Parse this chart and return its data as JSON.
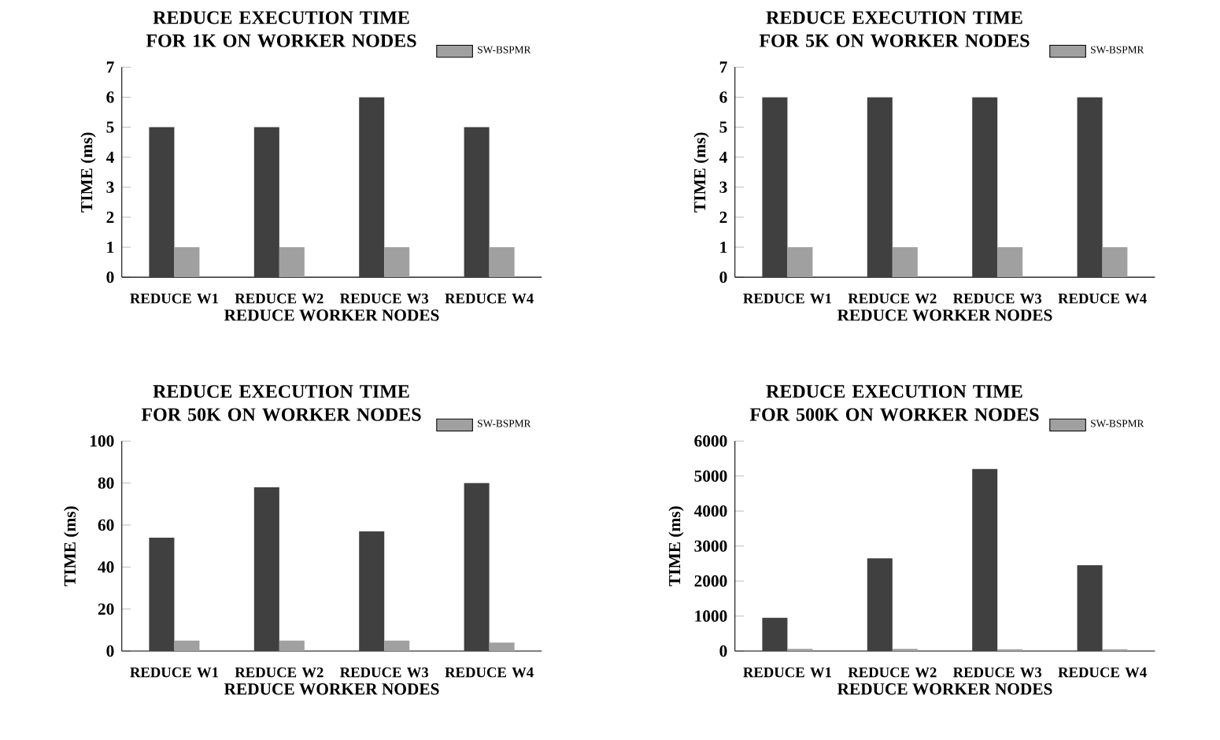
{
  "chart_data": [
    {
      "type": "bar",
      "title": "REDUCE EXECUTION TIME FOR 1K ON WORKER NODES",
      "xlabel": "REDUCE WORKER NODES",
      "ylabel": "TIME (ms)",
      "categories": [
        "REDUCE W1",
        "REDUCE W2",
        "REDUCE W3",
        "REDUCE W4"
      ],
      "ylim": [
        0,
        7
      ],
      "yticks": [
        0,
        1,
        2,
        3,
        4,
        5,
        6,
        7
      ],
      "legend": "top right",
      "series": [
        {
          "color": "#404040",
          "values": [
            5,
            5,
            6,
            5
          ]
        },
        {
          "name": "SW-BSPMR",
          "color": "#a0a0a0",
          "values": [
            1,
            1,
            1,
            1
          ]
        }
      ]
    },
    {
      "type": "bar",
      "title": "REDUCE EXECUTION TIME FOR 5K ON WORKER NODES",
      "xlabel": "REDUCE WORKER NODES",
      "ylabel": "TIME (ms)",
      "categories": [
        "REDUCE W1",
        "REDUCE W2",
        "REDUCE W3",
        "REDUCE W4"
      ],
      "ylim": [
        0,
        7
      ],
      "yticks": [
        0,
        1,
        2,
        3,
        4,
        5,
        6,
        7
      ],
      "legend": "top right",
      "series": [
        {
          "color": "#404040",
          "values": [
            6,
            6,
            6,
            6
          ]
        },
        {
          "name": "SW-BSPMR",
          "color": "#a0a0a0",
          "values": [
            1,
            1,
            1,
            1
          ]
        }
      ]
    },
    {
      "type": "bar",
      "title": "REDUCE EXECUTION TIME FOR 50K ON WORKER NODES",
      "xlabel": "REDUCE WORKER NODES",
      "ylabel": "TIME (ms)",
      "categories": [
        "REDUCE W1",
        "REDUCE W2",
        "REDUCE W3",
        "REDUCE W4"
      ],
      "ylim": [
        0,
        100
      ],
      "yticks": [
        0,
        20,
        40,
        60,
        80,
        100
      ],
      "legend": "top right",
      "series": [
        {
          "color": "#404040",
          "values": [
            54,
            78,
            57,
            80
          ]
        },
        {
          "name": "SW-BSPMR",
          "color": "#a0a0a0",
          "values": [
            5,
            5,
            5,
            4
          ]
        }
      ]
    },
    {
      "type": "bar",
      "title": "REDUCE EXECUTION TIME FOR 500K ON WORKER NODES",
      "xlabel": "REDUCE WORKER NODES",
      "ylabel": "TIME (ms)",
      "categories": [
        "REDUCE W1",
        "REDUCE W2",
        "REDUCE W3",
        "REDUCE W4"
      ],
      "ylim": [
        0,
        6000
      ],
      "yticks": [
        0,
        1000,
        2000,
        3000,
        4000,
        5000,
        6000
      ],
      "legend": "top right",
      "series": [
        {
          "color": "#404040",
          "values": [
            950,
            2650,
            5200,
            2450
          ]
        },
        {
          "color": "#a0a0a0",
          "name": "SW-BSPMR",
          "values": [
            60,
            60,
            50,
            50
          ]
        }
      ]
    }
  ]
}
